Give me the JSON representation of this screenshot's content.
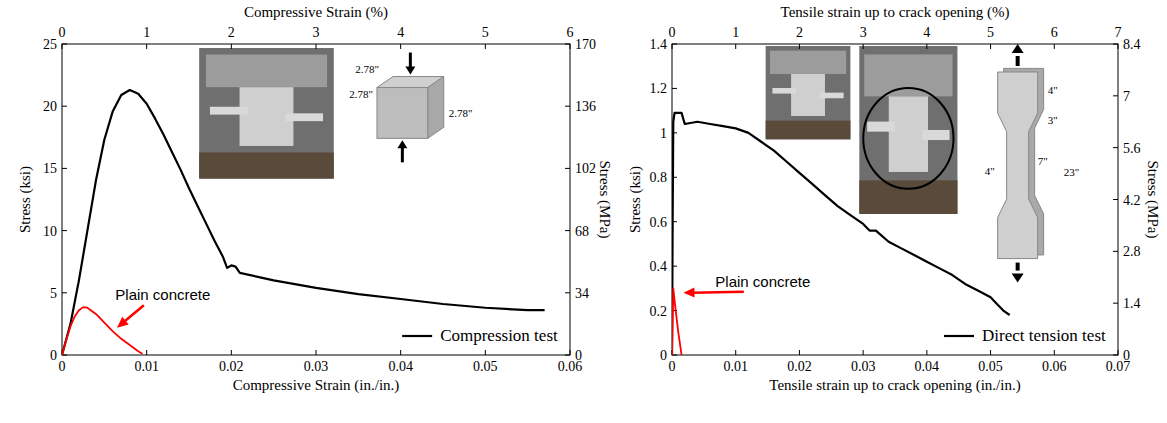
{
  "chart_data": [
    {
      "type": "line",
      "x_label": "Compressive Strain (in./in.)",
      "x2_label": "Compressive Strain (%)",
      "y_label": "Stress (ksi)",
      "y2_label": "Stress (MPa)",
      "xlim": [
        0,
        0.06
      ],
      "xticks": [
        0,
        0.01,
        0.02,
        0.03,
        0.04,
        0.05,
        0.06
      ],
      "x2lim": [
        0,
        6
      ],
      "x2ticks": [
        0,
        1,
        2,
        3,
        4,
        5,
        6
      ],
      "ylim": [
        0,
        25
      ],
      "yticks": [
        0,
        5,
        10,
        15,
        20,
        25
      ],
      "y2lim": [
        0,
        170
      ],
      "y2ticks": [
        0,
        34,
        68,
        102,
        136,
        170
      ],
      "legend": "lower right",
      "series": [
        {
          "name": "Compression test",
          "color": "#000000",
          "x": [
            0,
            0.001,
            0.002,
            0.003,
            0.004,
            0.005,
            0.006,
            0.007,
            0.008,
            0.009,
            0.01,
            0.011,
            0.012,
            0.013,
            0.014,
            0.015,
            0.016,
            0.017,
            0.018,
            0.019,
            0.0195,
            0.02,
            0.0205,
            0.021,
            0.023,
            0.025,
            0.03,
            0.035,
            0.04,
            0.045,
            0.05,
            0.055,
            0.057
          ],
          "values": [
            0,
            2.5,
            6,
            10,
            14,
            17.3,
            19.6,
            20.9,
            21.3,
            21,
            20.2,
            19,
            17.7,
            16.3,
            14.9,
            13.4,
            12,
            10.6,
            9.2,
            7.9,
            7,
            7.2,
            7.1,
            6.6,
            6.3,
            6,
            5.4,
            4.9,
            4.5,
            4.1,
            3.8,
            3.6,
            3.6
          ]
        },
        {
          "color": "#ff0000",
          "x": [
            0,
            0.0005,
            0.001,
            0.0015,
            0.002,
            0.0025,
            0.003,
            0.004,
            0.005,
            0.006,
            0.007,
            0.008,
            0.009,
            0.0095
          ],
          "values": [
            0,
            1.2,
            2.3,
            3.1,
            3.6,
            3.85,
            3.8,
            3.3,
            2.6,
            1.9,
            1.3,
            0.8,
            0.3,
            0.1
          ]
        }
      ],
      "annotations": [
        {
          "text": "Plain concrete",
          "x": 0.0063,
          "y": 4.8,
          "arrow_x": 0.0065,
          "arrow_y": 2.2
        }
      ],
      "inset_labels": [
        "2.78\"",
        "2.78\"",
        "2.78\""
      ]
    },
    {
      "type": "line",
      "x_label": "Tensile strain up to crack opening (in./in.)",
      "x2_label": "Tensile strain up to crack opening (%)",
      "y_label": "Stress (ksi)",
      "y2_label": "Stress (MPa)",
      "xlim": [
        0,
        0.07
      ],
      "xticks": [
        0,
        0.01,
        0.02,
        0.03,
        0.04,
        0.05,
        0.06,
        0.07
      ],
      "x2lim": [
        0,
        7
      ],
      "x2ticks": [
        0,
        1,
        2,
        3,
        4,
        5,
        6,
        7
      ],
      "ylim": [
        0,
        1.4
      ],
      "yticks": [
        0,
        0.2,
        0.4,
        0.6,
        0.8,
        1,
        1.2,
        1.4
      ],
      "y2lim": [
        0,
        8.4
      ],
      "y2ticks": [
        0,
        1.4,
        2.8,
        4.2,
        5.6,
        7,
        8.4
      ],
      "legend": "lower right",
      "series": [
        {
          "name": "Direct tension test",
          "color": "#000000",
          "x": [
            0,
            0.0001,
            0.0002,
            0.0004,
            0.0015,
            0.002,
            0.004,
            0.006,
            0.008,
            0.01,
            0.012,
            0.014,
            0.016,
            0.018,
            0.02,
            0.022,
            0.024,
            0.026,
            0.028,
            0.03,
            0.031,
            0.032,
            0.034,
            0.036,
            0.038,
            0.04,
            0.042,
            0.044,
            0.046,
            0.048,
            0.05,
            0.051,
            0.052,
            0.053
          ],
          "values": [
            0,
            0.6,
            1.05,
            1.09,
            1.09,
            1.04,
            1.05,
            1.04,
            1.03,
            1.02,
            1.0,
            0.96,
            0.92,
            0.87,
            0.82,
            0.77,
            0.72,
            0.67,
            0.63,
            0.59,
            0.56,
            0.56,
            0.51,
            0.48,
            0.45,
            0.42,
            0.39,
            0.36,
            0.32,
            0.29,
            0.26,
            0.23,
            0.2,
            0.18
          ]
        },
        {
          "color": "#ff0000",
          "x": [
            0,
            0.0002,
            0.0005,
            0.001,
            0.0015
          ],
          "values": [
            0,
            0.3,
            0.22,
            0.1,
            0
          ]
        }
      ],
      "annotations": [
        {
          "text": "Plain concrete",
          "x": 0.0068,
          "y": 0.33,
          "arrow_x": 0.0018,
          "arrow_y": 0.28
        }
      ],
      "inset_labels": [
        "4\"",
        "3\"",
        "7\"",
        "23\"",
        "4\""
      ]
    }
  ]
}
